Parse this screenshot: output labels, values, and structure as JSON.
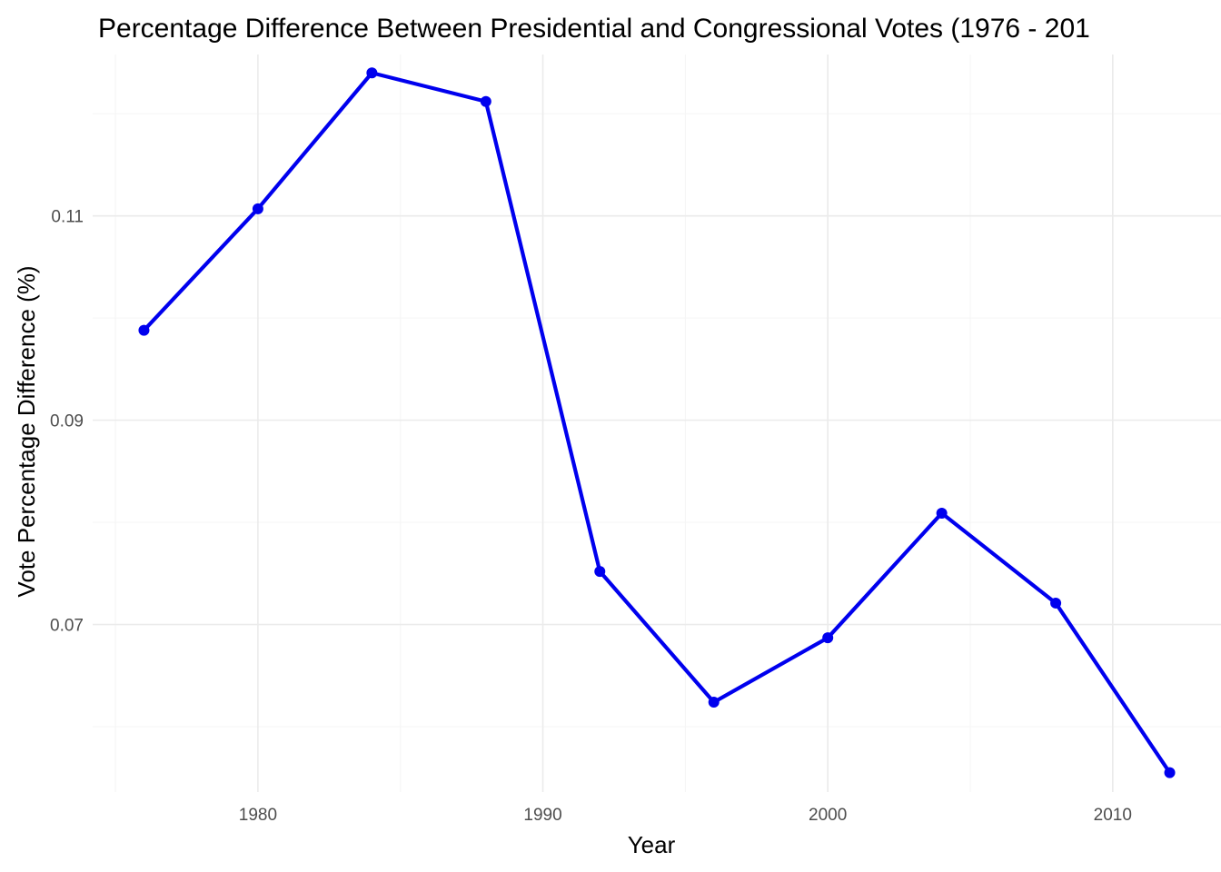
{
  "chart_data": {
    "type": "line",
    "title": "Percentage Difference Between Presidential and Congressional Votes (1976 - 201",
    "xlabel": "Year",
    "ylabel": "Vote Percentage Difference (%)",
    "x": [
      1976,
      1980,
      1984,
      1988,
      1992,
      1996,
      2000,
      2004,
      2008,
      2012
    ],
    "series": [
      {
        "values": [
          0.0988,
          0.1107,
          0.124,
          0.1212,
          0.0752,
          0.0624,
          0.0687,
          0.0809,
          0.0721,
          0.0555
        ]
      }
    ],
    "xlim": [
      1974.2,
      2013.8
    ],
    "ylim": [
      0.0536,
      0.1258
    ],
    "x_ticks": [
      1980,
      1990,
      2000,
      2010
    ],
    "x_tick_labels": [
      "1980",
      "1990",
      "2000",
      "2010"
    ],
    "x_minor_ticks": [
      1975,
      1985,
      1995,
      2005
    ],
    "y_ticks": [
      0.07,
      0.09,
      0.11
    ],
    "y_tick_labels": [
      "0.07",
      "0.09",
      "0.11"
    ],
    "y_minor_ticks": [
      0.06,
      0.08,
      0.1,
      0.12
    ],
    "grid": true,
    "legend": "none",
    "colors": {
      "line": "#0000ee",
      "grid_major": "#ebebeb",
      "grid_minor": "#f5f5f5"
    }
  }
}
